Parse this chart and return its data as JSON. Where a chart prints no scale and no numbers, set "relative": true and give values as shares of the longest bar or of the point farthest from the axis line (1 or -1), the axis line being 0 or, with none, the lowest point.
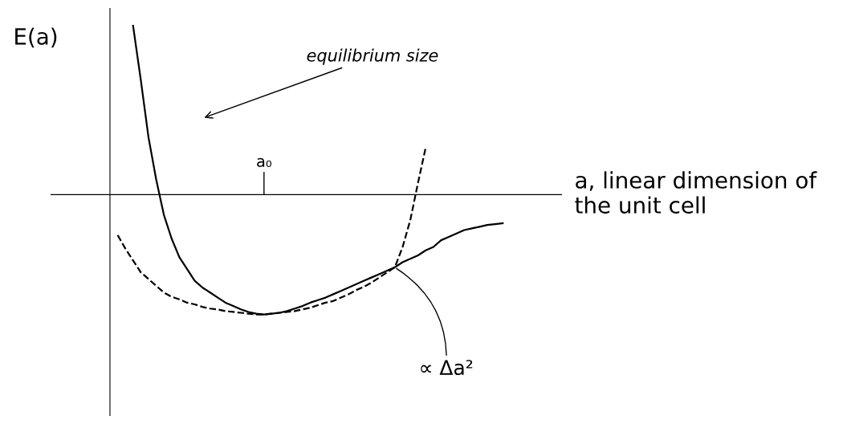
{
  "chart_data": {
    "type": "line",
    "relative": true,
    "xlabel": "a, linear dimension of the unit cell",
    "ylabel": "E(a)",
    "categories": [
      null,
      null,
      null,
      null,
      null,
      null,
      null,
      null,
      null,
      null,
      null,
      null,
      null,
      null,
      null,
      null,
      null,
      null,
      null,
      null,
      null,
      null,
      null,
      null,
      null,
      null,
      null,
      null,
      null,
      null,
      null,
      null,
      null,
      null,
      null,
      null,
      null,
      null,
      null,
      null,
      null,
      null,
      null,
      null,
      null,
      null,
      null,
      null,
      null,
      null,
      null,
      null
    ],
    "series": [
      {
        "color": "#000000",
        "line_style": "solid",
        "values": [
          null,
          null,
          null,
          1.0,
          0.68,
          0.34,
          0.09,
          -0.12,
          -0.26,
          -0.37,
          -0.44,
          -0.51,
          -0.55,
          -0.58,
          -0.61,
          -0.64,
          -0.66,
          -0.68,
          -0.695,
          -0.705,
          -0.71,
          -0.705,
          -0.7,
          -0.69,
          -0.675,
          -0.66,
          -0.64,
          -0.625,
          -0.61,
          -0.59,
          -0.57,
          -0.55,
          -0.53,
          -0.51,
          -0.49,
          -0.47,
          -0.45,
          -0.43,
          -0.4,
          -0.38,
          -0.36,
          -0.33,
          -0.31,
          -0.27,
          -0.25,
          -0.23,
          -0.21,
          -0.2,
          -0.19,
          -0.18,
          -0.175,
          -0.17
        ]
      },
      {
        "color": "#000000",
        "line_style": "dashed",
        "values": [
          null,
          -0.24,
          -0.32,
          -0.39,
          -0.46,
          -0.5,
          -0.54,
          -0.58,
          -0.605,
          -0.62,
          -0.64,
          -0.65,
          -0.665,
          -0.675,
          -0.68,
          -0.69,
          -0.695,
          -0.7,
          -0.705,
          -0.71,
          -0.71,
          -0.705,
          -0.7,
          -0.695,
          -0.69,
          -0.68,
          -0.67,
          -0.655,
          -0.64,
          -0.63,
          -0.61,
          -0.59,
          -0.565,
          -0.545,
          -0.52,
          -0.49,
          -0.46,
          -0.43,
          -0.31,
          -0.15,
          0.07,
          0.28,
          null,
          null,
          null,
          null,
          null,
          null,
          null,
          null,
          null,
          null
        ]
      }
    ],
    "annotations": [
      "equilibrium size",
      "a₀",
      "∝ Δa²"
    ]
  }
}
